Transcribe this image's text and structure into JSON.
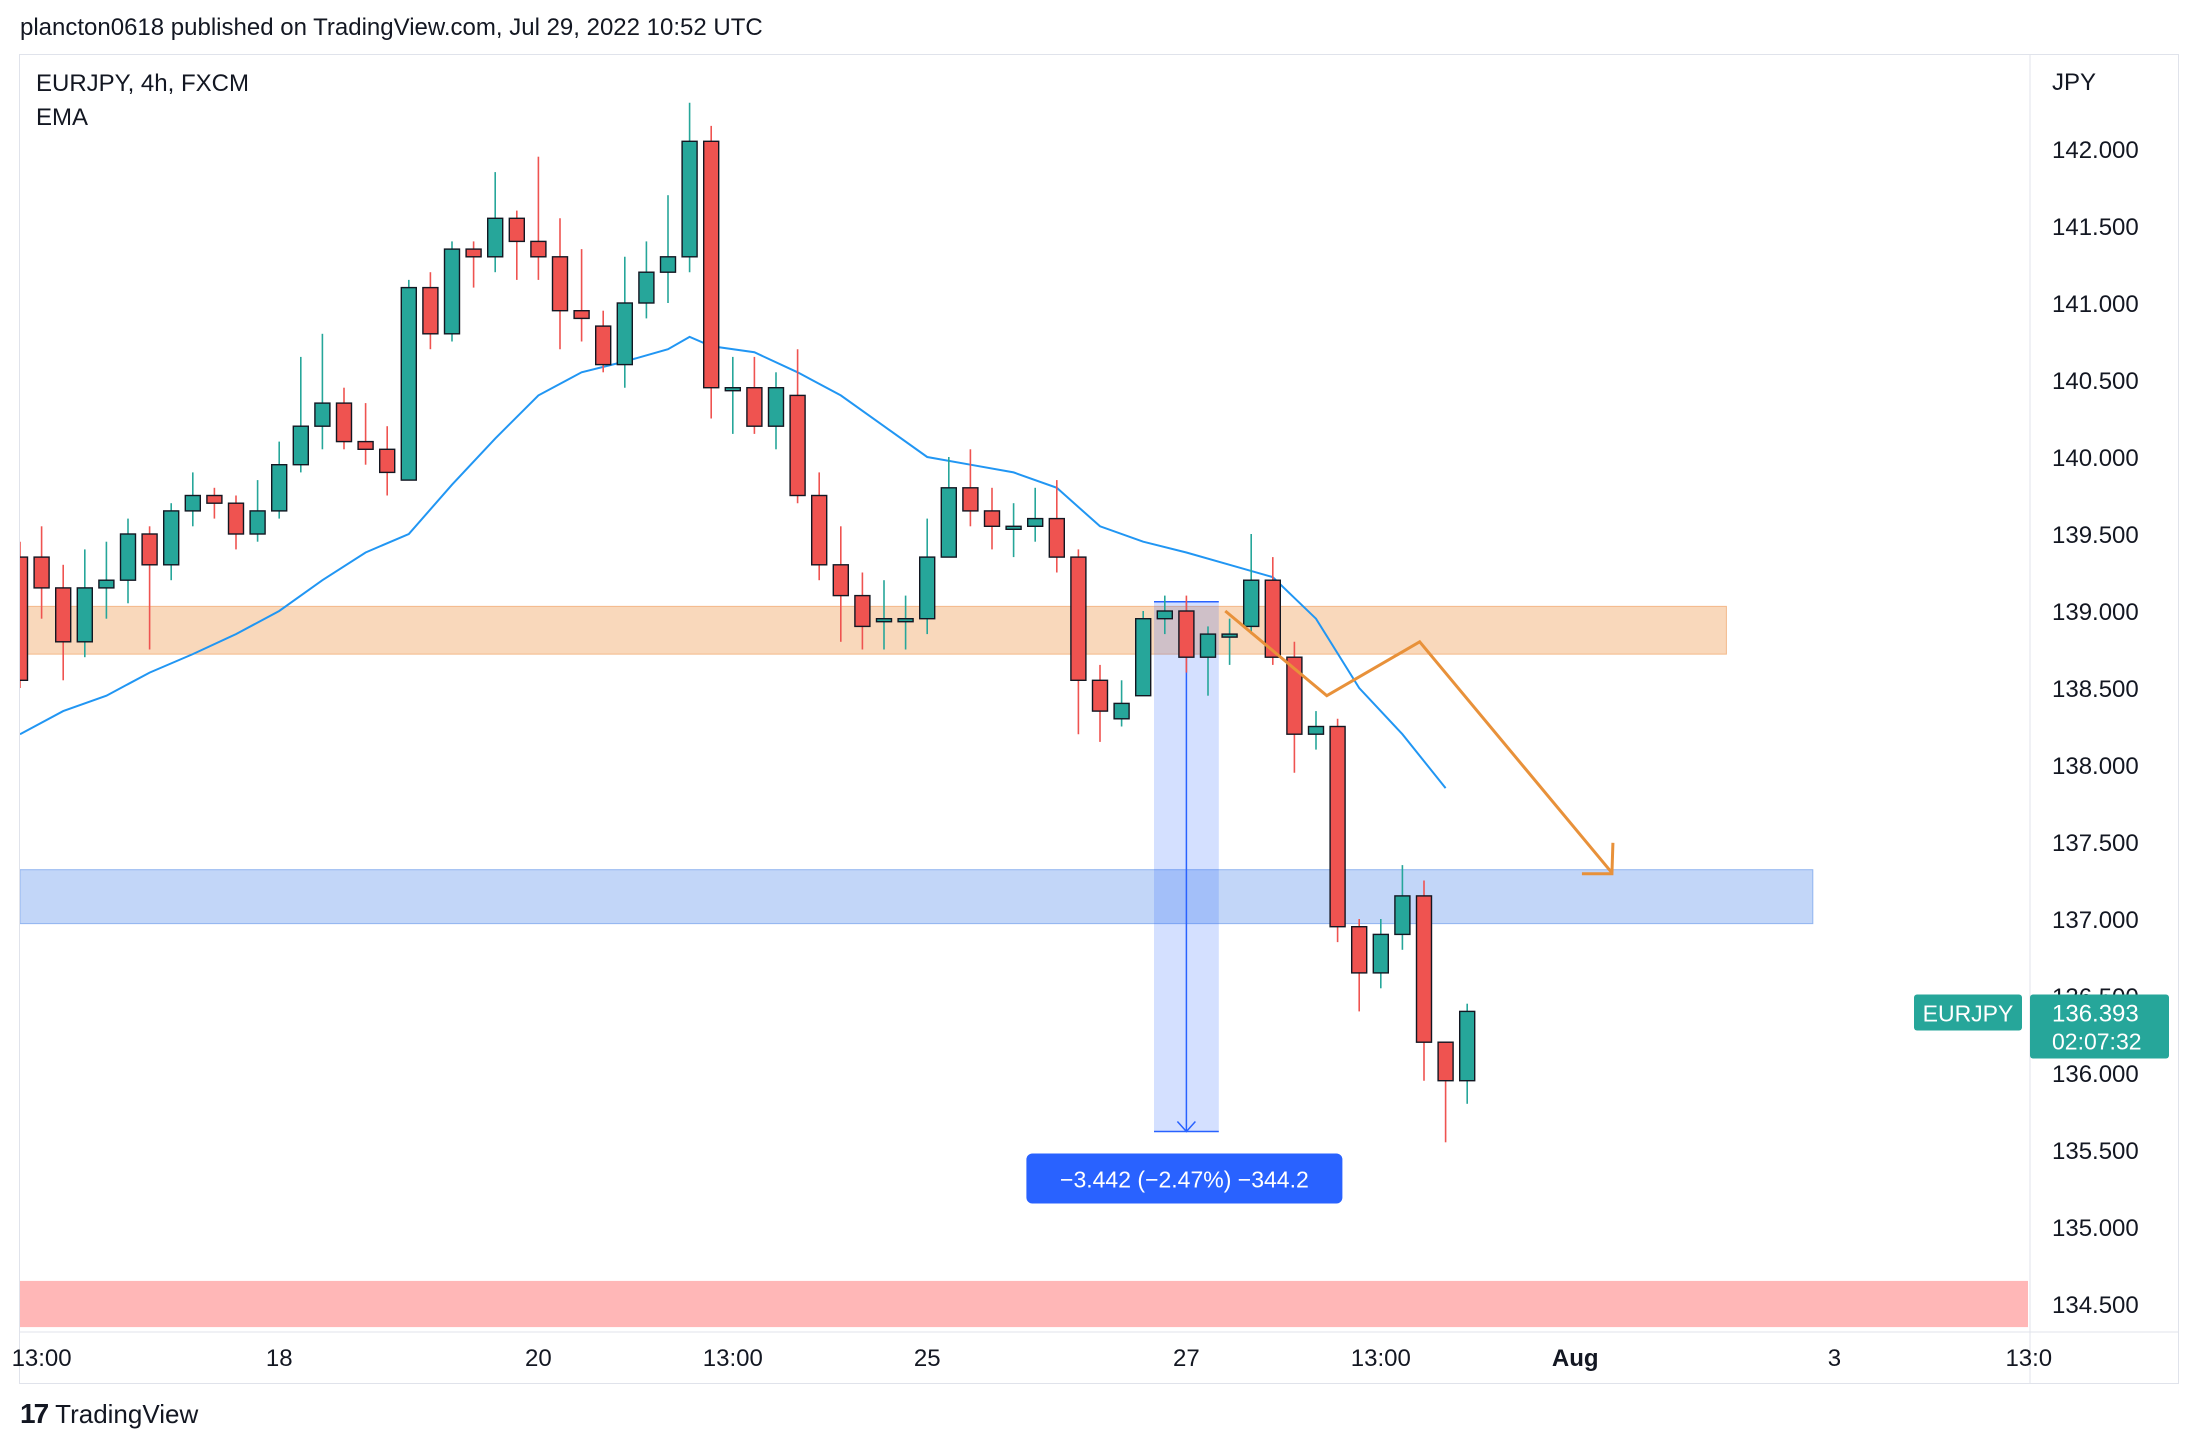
{
  "header": {
    "published": "plancton0618 published on TradingView.com, Jul 29, 2022 10:52 UTC"
  },
  "legend": {
    "symbol": "EURJPY, 4h, FXCM",
    "indicator": "EMA"
  },
  "footer": {
    "mark": "17",
    "name": "TradingView"
  },
  "colors": {
    "up": "#26a69a",
    "down": "#ef5350",
    "ema": "#2196f3",
    "orange_zone": "#f6c79e",
    "blue_zone": "#a8c4f5",
    "red_zone": "#ffb3b3",
    "arrow": "#e8913a",
    "measure": "#2962ff"
  },
  "chart_data": {
    "type": "candlestick",
    "symbol": "EURJPY",
    "timeframe": "4h",
    "ylabel": "JPY",
    "ylim": [
      134.3,
      142.6
    ],
    "yticks": [
      "142.000",
      "141.500",
      "141.000",
      "140.500",
      "140.000",
      "139.500",
      "139.000",
      "138.500",
      "138.000",
      "137.500",
      "137.000",
      "136.500",
      "136.000",
      "135.500",
      "135.000",
      "134.500"
    ],
    "xticks": [
      {
        "label": "13:00",
        "i": 1
      },
      {
        "label": "18",
        "i": 12
      },
      {
        "label": "20",
        "i": 24
      },
      {
        "label": "13:00",
        "i": 33
      },
      {
        "label": "25",
        "i": 42
      },
      {
        "label": "27",
        "i": 54
      },
      {
        "label": "13:00",
        "i": 63
      },
      {
        "label": "Aug",
        "i": 72
      },
      {
        "label": "3",
        "i": 84
      },
      {
        "label": "13:0",
        "i": 93
      }
    ],
    "candles": [
      [
        139.35,
        138.55,
        139.45,
        138.5
      ],
      [
        139.35,
        139.15,
        139.55,
        138.95
      ],
      [
        139.15,
        138.8,
        139.3,
        138.55
      ],
      [
        138.8,
        139.15,
        139.4,
        138.7
      ],
      [
        139.15,
        139.2,
        139.45,
        138.95
      ],
      [
        139.2,
        139.5,
        139.6,
        139.05
      ],
      [
        139.5,
        139.3,
        139.55,
        138.75
      ],
      [
        139.3,
        139.65,
        139.7,
        139.2
      ],
      [
        139.65,
        139.75,
        139.9,
        139.55
      ],
      [
        139.75,
        139.7,
        139.8,
        139.6
      ],
      [
        139.7,
        139.5,
        139.75,
        139.4
      ],
      [
        139.5,
        139.65,
        139.85,
        139.45
      ],
      [
        139.65,
        139.95,
        140.1,
        139.6
      ],
      [
        139.95,
        140.2,
        140.65,
        139.9
      ],
      [
        140.2,
        140.35,
        140.8,
        140.05
      ],
      [
        140.35,
        140.1,
        140.45,
        140.05
      ],
      [
        140.1,
        140.05,
        140.35,
        139.95
      ],
      [
        140.05,
        139.9,
        140.2,
        139.75
      ],
      [
        139.85,
        141.1,
        141.15,
        139.85
      ],
      [
        141.1,
        140.8,
        141.2,
        140.7
      ],
      [
        140.8,
        141.35,
        141.4,
        140.75
      ],
      [
        141.35,
        141.3,
        141.4,
        141.1
      ],
      [
        141.3,
        141.55,
        141.85,
        141.2
      ],
      [
        141.55,
        141.4,
        141.6,
        141.15
      ],
      [
        141.4,
        141.3,
        141.95,
        141.15
      ],
      [
        141.3,
        140.95,
        141.55,
        140.7
      ],
      [
        140.95,
        140.9,
        141.35,
        140.75
      ],
      [
        140.85,
        140.6,
        140.95,
        140.55
      ],
      [
        140.6,
        141.0,
        141.3,
        140.45
      ],
      [
        141.0,
        141.2,
        141.4,
        140.9
      ],
      [
        141.2,
        141.3,
        141.7,
        141.0
      ],
      [
        141.3,
        142.05,
        142.3,
        141.2
      ],
      [
        142.05,
        140.45,
        142.15,
        140.25
      ],
      [
        140.45,
        140.45,
        140.65,
        140.15
      ],
      [
        140.45,
        140.2,
        140.65,
        140.15
      ],
      [
        140.2,
        140.45,
        140.55,
        140.05
      ],
      [
        140.4,
        139.75,
        140.7,
        139.7
      ],
      [
        139.75,
        139.3,
        139.9,
        139.2
      ],
      [
        139.3,
        139.1,
        139.55,
        138.8
      ],
      [
        139.1,
        138.9,
        139.25,
        138.75
      ],
      [
        138.95,
        138.95,
        139.2,
        138.75
      ],
      [
        138.95,
        138.95,
        139.1,
        138.75
      ],
      [
        138.95,
        139.35,
        139.6,
        138.85
      ],
      [
        139.35,
        139.8,
        140.0,
        139.35
      ],
      [
        139.8,
        139.65,
        140.05,
        139.55
      ],
      [
        139.65,
        139.55,
        139.8,
        139.4
      ],
      [
        139.55,
        139.55,
        139.7,
        139.35
      ],
      [
        139.55,
        139.6,
        139.8,
        139.45
      ],
      [
        139.6,
        139.35,
        139.85,
        139.25
      ],
      [
        139.35,
        138.55,
        139.4,
        138.2
      ],
      [
        138.55,
        138.35,
        138.65,
        138.15
      ],
      [
        138.3,
        138.4,
        138.55,
        138.25
      ],
      [
        138.45,
        138.95,
        139.0,
        138.45
      ],
      [
        138.95,
        139.0,
        139.1,
        138.85
      ],
      [
        139.0,
        138.7,
        139.1,
        138.6
      ],
      [
        138.7,
        138.85,
        138.9,
        138.45
      ],
      [
        138.85,
        138.85,
        138.95,
        138.65
      ],
      [
        138.9,
        139.2,
        139.5,
        138.85
      ],
      [
        139.2,
        138.7,
        139.35,
        138.65
      ],
      [
        138.7,
        138.2,
        138.8,
        137.95
      ],
      [
        138.2,
        138.25,
        138.35,
        138.1
      ],
      [
        138.25,
        136.95,
        138.3,
        136.85
      ],
      [
        136.95,
        136.65,
        137.0,
        136.4
      ],
      [
        136.65,
        136.9,
        137.0,
        136.55
      ],
      [
        136.9,
        137.15,
        137.35,
        136.8
      ],
      [
        137.15,
        136.2,
        137.25,
        135.95
      ],
      [
        136.2,
        135.95,
        136.2,
        135.55
      ],
      [
        135.95,
        136.4,
        136.45,
        135.8
      ]
    ],
    "ema_points": [
      [
        0,
        138.2
      ],
      [
        2,
        138.35
      ],
      [
        4,
        138.45
      ],
      [
        6,
        138.6
      ],
      [
        8,
        138.72
      ],
      [
        10,
        138.85
      ],
      [
        12,
        139.0
      ],
      [
        14,
        139.2
      ],
      [
        16,
        139.38
      ],
      [
        18,
        139.5
      ],
      [
        20,
        139.82
      ],
      [
        22,
        140.12
      ],
      [
        24,
        140.4
      ],
      [
        26,
        140.55
      ],
      [
        28,
        140.62
      ],
      [
        30,
        140.7
      ],
      [
        31,
        140.78
      ],
      [
        32,
        140.72
      ],
      [
        34,
        140.68
      ],
      [
        36,
        140.55
      ],
      [
        38,
        140.4
      ],
      [
        40,
        140.2
      ],
      [
        42,
        140.0
      ],
      [
        44,
        139.95
      ],
      [
        46,
        139.9
      ],
      [
        48,
        139.8
      ],
      [
        50,
        139.55
      ],
      [
        52,
        139.45
      ],
      [
        54,
        139.38
      ],
      [
        56,
        139.3
      ],
      [
        58,
        139.22
      ],
      [
        60,
        138.95
      ],
      [
        62,
        138.5
      ],
      [
        64,
        138.2
      ],
      [
        66,
        137.85
      ]
    ],
    "zones": [
      {
        "name": "resistance-zone",
        "from": 138.72,
        "to": 139.03,
        "end_i": 79,
        "color": "#f6c79e"
      },
      {
        "name": "support-zone",
        "from": 136.97,
        "to": 137.32,
        "end_i": 83,
        "color": "#a8c4f5"
      },
      {
        "name": "lower-zone",
        "from": 134.35,
        "to": 134.65,
        "end_i": 93,
        "color": "#ffb3b3"
      }
    ],
    "measure": {
      "start_i": 52.5,
      "end_i": 55.5,
      "from_price": 139.06,
      "to_price": 135.62,
      "label": "−3.442 (−2.47%) −344.2"
    },
    "projection": [
      [
        55.8,
        139.0
      ],
      [
        60.5,
        138.45
      ],
      [
        64.8,
        138.8
      ],
      [
        73.7,
        137.3
      ]
    ],
    "last_price": {
      "symbol": "EURJPY",
      "price": "136.393",
      "countdown": "02:07:32",
      "value": 136.393
    }
  }
}
